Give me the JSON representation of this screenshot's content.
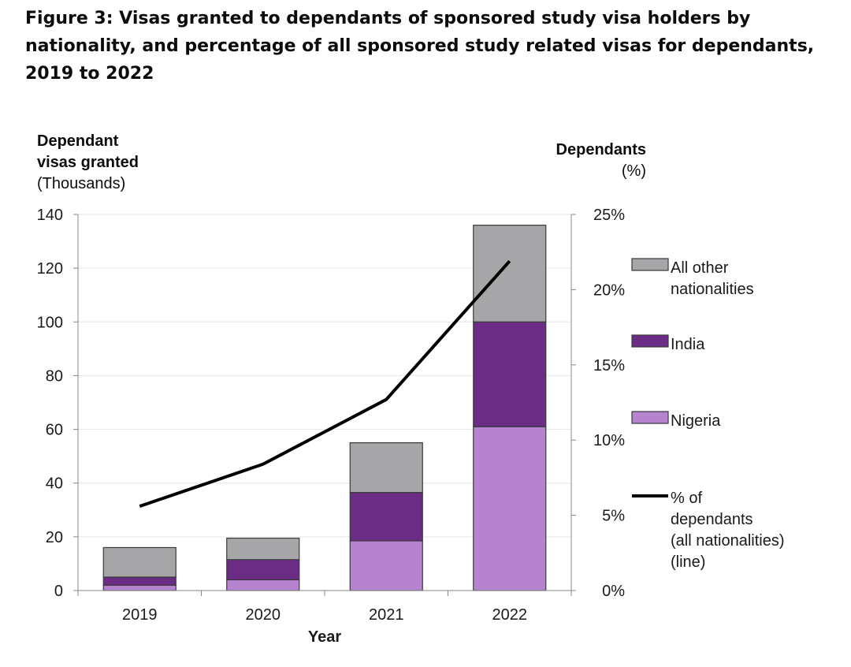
{
  "title": "Figure 3: Visas granted to dependants of sponsored study visa holders by nationality, and percentage of all sponsored study related visas for dependants, 2019 to 2022",
  "colors": {
    "other": "#a6a6a8",
    "india": "#6b2c86",
    "nigeria": "#b583cf",
    "line": "#000000",
    "grid": "#e6e6e6",
    "axis": "#888888"
  },
  "chart_data": {
    "type": "bar",
    "stacked": true,
    "title": "Figure 3: Visas granted to dependants of sponsored study visa holders by nationality, and percentage of all sponsored study related visas for dependants, 2019 to 2022",
    "xlabel": "Year",
    "ylabel_left": {
      "line1": "Dependant",
      "line2": "visas granted",
      "line3": "(Thousands)"
    },
    "ylabel_right": {
      "line1": "Dependants",
      "line2": "(%)"
    },
    "categories": [
      "2019",
      "2020",
      "2021",
      "2022"
    ],
    "ylim": [
      0,
      140
    ],
    "yticks": [
      "0",
      "20",
      "40",
      "60",
      "80",
      "100",
      "120",
      "140"
    ],
    "ylim_right": [
      0,
      25
    ],
    "yticks_right": [
      "0%",
      "5%",
      "10%",
      "15%",
      "20%",
      "25%"
    ],
    "grid": true,
    "legend_position": "right",
    "series": [
      {
        "name": "Nigeria",
        "values": [
          2,
          4,
          18.5,
          61
        ]
      },
      {
        "name": "India",
        "values": [
          3,
          7.5,
          18,
          39
        ]
      },
      {
        "name": "All other nationalities",
        "values": [
          11,
          8,
          18.5,
          36
        ]
      }
    ],
    "line_series": {
      "name": "% of dependants (all nationalities) (line)",
      "axis": "right",
      "values": [
        5.6,
        8.4,
        12.7,
        21.9
      ]
    },
    "legend": [
      {
        "key": "other",
        "lines": [
          "All other",
          "nationalities"
        ]
      },
      {
        "key": "india",
        "lines": [
          "India"
        ]
      },
      {
        "key": "nigeria",
        "lines": [
          "Nigeria"
        ]
      },
      {
        "key": "line",
        "lines": [
          "% of",
          "dependants",
          "(all nationalities)",
          "(line)"
        ]
      }
    ]
  }
}
